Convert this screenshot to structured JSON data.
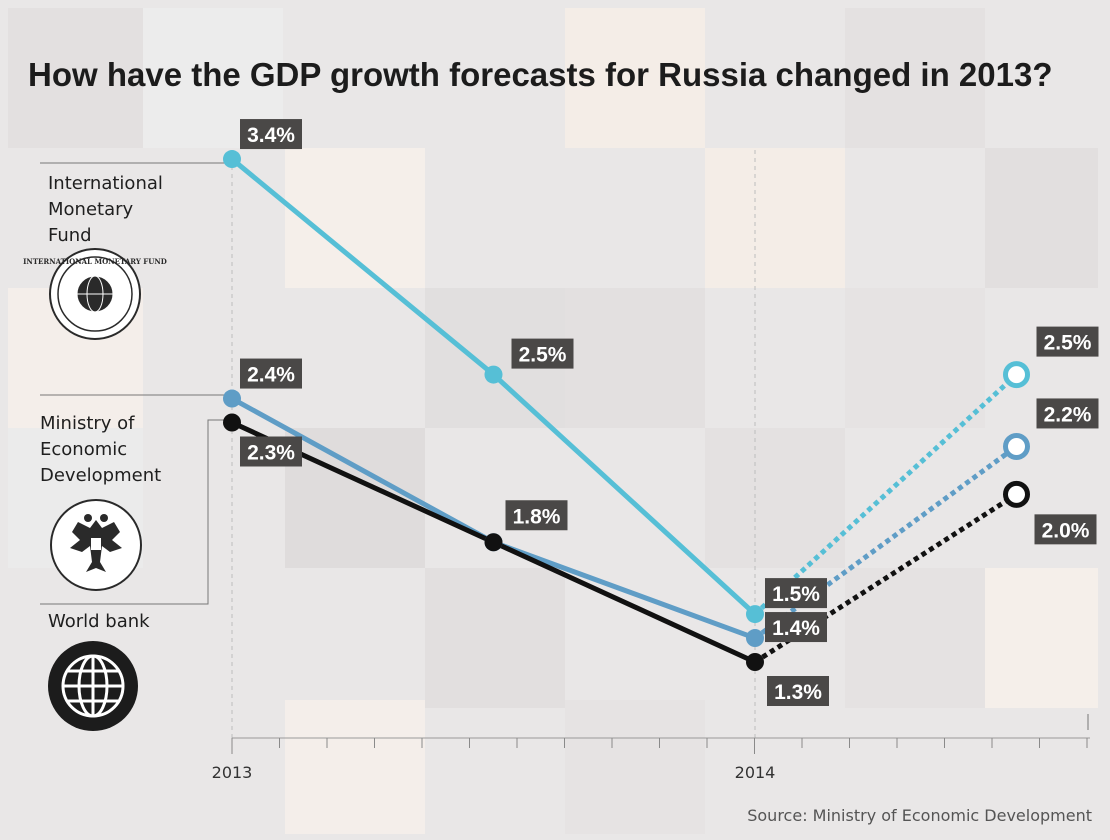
{
  "chart_data": {
    "type": "line",
    "title": "How have the GDP growth forecasts for Russia changed in 2013?",
    "x_ticks": [
      "2013",
      "2014"
    ],
    "xlabel": "",
    "ylabel": "",
    "source": "Source: Ministry of Economic Development",
    "series": [
      {
        "name": "International Monetary Fund",
        "color": "#56bfd6",
        "points": [
          {
            "x": 2013.0,
            "y": 3.4,
            "label": "3.4%",
            "style": "solid"
          },
          {
            "x": 2013.5,
            "y": 2.5,
            "label": "2.5%",
            "style": "solid"
          },
          {
            "x": 2014.0,
            "y": 1.5,
            "label": "1.5%",
            "style": "solid"
          },
          {
            "x": 2014.5,
            "y": 2.5,
            "label": "2.5%",
            "style": "forecast"
          }
        ]
      },
      {
        "name": "Ministry of Economic Development",
        "color": "#5f9dc6",
        "points": [
          {
            "x": 2013.0,
            "y": 2.4,
            "label": "2.4%",
            "style": "solid"
          },
          {
            "x": 2013.5,
            "y": 1.8,
            "label": "1.8%",
            "style": "solid"
          },
          {
            "x": 2014.0,
            "y": 1.4,
            "label": "1.4%",
            "style": "solid"
          },
          {
            "x": 2014.5,
            "y": 2.2,
            "label": "2.2%",
            "style": "forecast"
          }
        ]
      },
      {
        "name": "World bank",
        "color": "#111111",
        "points": [
          {
            "x": 2013.0,
            "y": 2.3,
            "label": "2.3%",
            "style": "solid"
          },
          {
            "x": 2013.5,
            "y": 1.8,
            "label": "",
            "style": "solid"
          },
          {
            "x": 2014.0,
            "y": 1.3,
            "label": "1.3%",
            "style": "solid"
          },
          {
            "x": 2014.5,
            "y": 2.0,
            "label": "2.0%",
            "style": "forecast"
          }
        ]
      }
    ]
  },
  "legend": [
    {
      "lines": [
        "International",
        "Monetary",
        "Fund"
      ],
      "logo_icon": "imf-seal-icon",
      "logo_text": "INTERNATIONAL MONETARY FUND"
    },
    {
      "lines": [
        "Ministry of",
        "Economic",
        "Development"
      ],
      "logo_icon": "double-headed-eagle-icon"
    },
    {
      "lines": [
        "World bank"
      ],
      "logo_icon": "globe-icon"
    }
  ]
}
